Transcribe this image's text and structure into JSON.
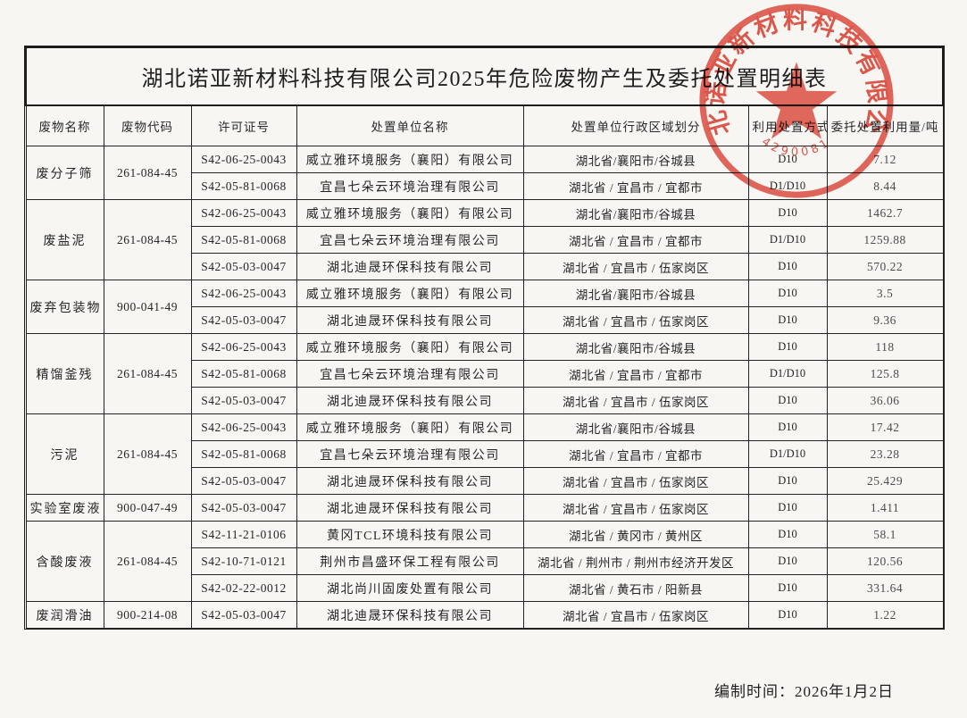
{
  "page": {
    "background": "#f7f6f3"
  },
  "title": "湖北诺亚新材料科技有限公司2025年危险废物产生及委托处置明细表",
  "table": {
    "columns": [
      "废物名称",
      "废物代码",
      "许可证号",
      "处置单位名称",
      "处置单位行政区域划分",
      "利用处置方式",
      "委托处置利用量/吨"
    ],
    "groups": [
      {
        "name": "废分子筛",
        "code": "261-084-45",
        "rows": [
          {
            "license": "S42-06-25-0043",
            "company": "威立雅环境服务（襄阳）有限公司",
            "region": "湖北省/襄阳市/谷城县",
            "method": "D10",
            "amount": "7.12"
          },
          {
            "license": "S42-05-81-0068",
            "company": "宜昌七朵云环境治理有限公司",
            "region": "湖北省 / 宜昌市 / 宜都市",
            "method": "D1/D10",
            "amount": "8.44"
          }
        ]
      },
      {
        "name": "废盐泥",
        "code": "261-084-45",
        "rows": [
          {
            "license": "S42-06-25-0043",
            "company": "威立雅环境服务（襄阳）有限公司",
            "region": "湖北省/襄阳市/谷城县",
            "method": "D10",
            "amount": "1462.7"
          },
          {
            "license": "S42-05-81-0068",
            "company": "宜昌七朵云环境治理有限公司",
            "region": "湖北省 / 宜昌市 / 宜都市",
            "method": "D1/D10",
            "amount": "1259.88"
          },
          {
            "license": "S42-05-03-0047",
            "company": "湖北迪晟环保科技有限公司",
            "region": "湖北省 / 宜昌市 / 伍家岗区",
            "method": "D10",
            "amount": "570.22"
          }
        ]
      },
      {
        "name": "废弃包装物",
        "code": "900-041-49",
        "rows": [
          {
            "license": "S42-06-25-0043",
            "company": "威立雅环境服务（襄阳）有限公司",
            "region": "湖北省/襄阳市/谷城县",
            "method": "D10",
            "amount": "3.5"
          },
          {
            "license": "S42-05-03-0047",
            "company": "湖北迪晟环保科技有限公司",
            "region": "湖北省 / 宜昌市 / 伍家岗区",
            "method": "D10",
            "amount": "9.36"
          }
        ]
      },
      {
        "name": "精馏釜残",
        "code": "261-084-45",
        "rows": [
          {
            "license": "S42-06-25-0043",
            "company": "威立雅环境服务（襄阳）有限公司",
            "region": "湖北省/襄阳市/谷城县",
            "method": "D10",
            "amount": "118"
          },
          {
            "license": "S42-05-81-0068",
            "company": "宜昌七朵云环境治理有限公司",
            "region": "湖北省 / 宜昌市 / 宜都市",
            "method": "D1/D10",
            "amount": "125.8"
          },
          {
            "license": "S42-05-03-0047",
            "company": "湖北迪晟环保科技有限公司",
            "region": "湖北省 / 宜昌市 / 伍家岗区",
            "method": "D10",
            "amount": "36.06"
          }
        ]
      },
      {
        "name": "污泥",
        "code": "261-084-45",
        "rows": [
          {
            "license": "S42-06-25-0043",
            "company": "威立雅环境服务（襄阳）有限公司",
            "region": "湖北省/襄阳市/谷城县",
            "method": "D10",
            "amount": "17.42"
          },
          {
            "license": "S42-05-81-0068",
            "company": "宜昌七朵云环境治理有限公司",
            "region": "湖北省 / 宜昌市 / 宜都市",
            "method": "D1/D10",
            "amount": "23.28"
          },
          {
            "license": "S42-05-03-0047",
            "company": "湖北迪晟环保科技有限公司",
            "region": "湖北省 / 宜昌市 / 伍家岗区",
            "method": "D10",
            "amount": "25.429"
          }
        ]
      },
      {
        "name": "实验室废液",
        "code": "900-047-49",
        "rows": [
          {
            "license": "S42-05-03-0047",
            "company": "湖北迪晟环保科技有限公司",
            "region": "湖北省 / 宜昌市 / 伍家岗区",
            "method": "D10",
            "amount": "1.411"
          }
        ]
      },
      {
        "name": "含酸废液",
        "code": "261-084-45",
        "rows": [
          {
            "license": "S42-11-21-0106",
            "company": "黄冈TCL环境科技有限公司",
            "region": "湖北省 / 黄冈市 / 黄州区",
            "method": "D10",
            "amount": "58.1"
          },
          {
            "license": "S42-10-71-0121",
            "company": "荆州市昌盛环保工程有限公司",
            "region": "湖北省 / 荆州市 / 荆州市经济开发区",
            "method": "D10",
            "amount": "120.56"
          },
          {
            "license": "S42-02-22-0012",
            "company": "湖北尚川固废处置有限公司",
            "region": "湖北省 / 黄石市 / 阳新县",
            "method": "D10",
            "amount": "331.64"
          }
        ]
      },
      {
        "name": "废润滑油",
        "code": "900-214-08",
        "rows": [
          {
            "license": "S42-05-03-0047",
            "company": "湖北迪晟环保科技有限公司",
            "region": "湖北省 / 宜昌市 / 伍家岗区",
            "method": "D10",
            "amount": "1.22"
          }
        ]
      }
    ]
  },
  "footer": {
    "prepared_label": "编制时间：",
    "prepared_date": "2026年1月2日"
  },
  "stamp": {
    "company": "湖北诺亚新材料科技有限公司",
    "serial": "4290081",
    "color": "#dd2b1c"
  }
}
